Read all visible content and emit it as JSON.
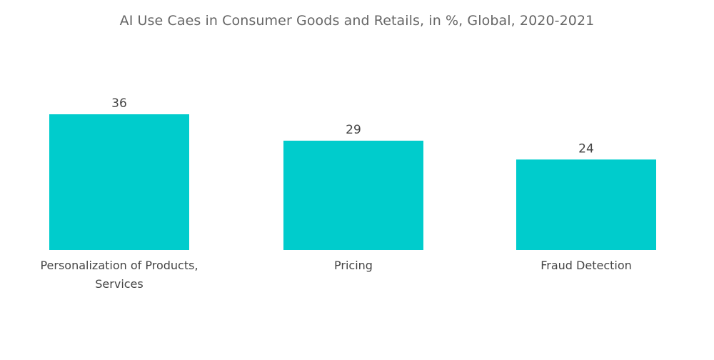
{
  "chart_data": {
    "type": "bar",
    "title": "AI Use Caes in Consumer Goods and Retails, in %, Global, 2020-2021",
    "categories": [
      [
        "Personalization of Products,",
        "Services"
      ],
      [
        "Pricing"
      ],
      [
        "Fraud Detection"
      ]
    ],
    "values": [
      36,
      29,
      24
    ],
    "xlabel": "",
    "ylabel": "",
    "ylim": [
      0,
      36
    ],
    "grid": false,
    "legend": "none",
    "bar_color": "#00cccc"
  }
}
